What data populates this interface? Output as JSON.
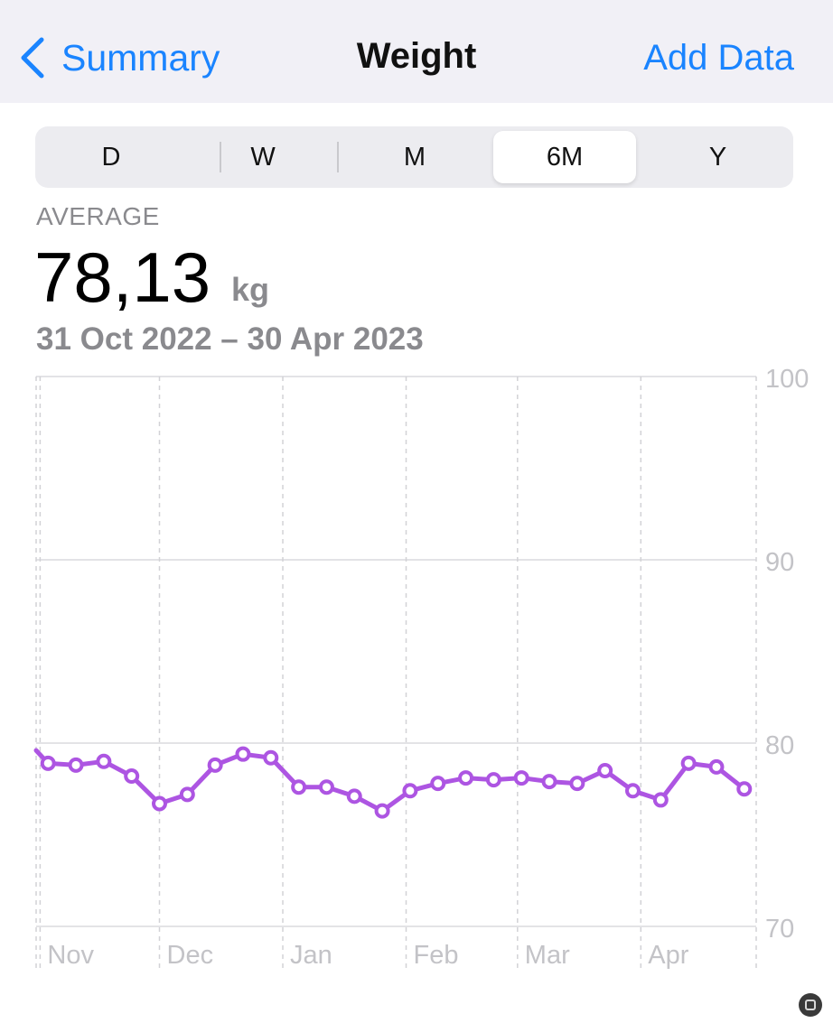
{
  "nav": {
    "back_label": "Summary",
    "title": "Weight",
    "action_label": "Add Data"
  },
  "segments": [
    "D",
    "W",
    "M",
    "6M",
    "Y"
  ],
  "selected_segment": "6M",
  "summary": {
    "label": "AVERAGE",
    "value": "78,13",
    "unit": "kg",
    "range": "31 Oct 2022 – 30 Apr 2023"
  },
  "colors": {
    "accent": "#1a84ff",
    "series": "#ad55e2"
  },
  "chart_data": {
    "type": "line",
    "y_ticks": [
      "100",
      "90",
      "80",
      "70"
    ],
    "x_labels": [
      "Nov",
      "Dec",
      "Jan",
      "Feb",
      "Mar",
      "Apr"
    ],
    "ylim": [
      70,
      100
    ],
    "xlim": [
      "2022-10-31",
      "2023-04-30"
    ],
    "series": [
      {
        "points": [
          [
            "2022-10-31",
            79.6
          ],
          [
            "2022-11-03",
            78.9
          ],
          [
            "2022-11-10",
            78.8
          ],
          [
            "2022-11-17",
            79.0
          ],
          [
            "2022-11-24",
            78.2
          ],
          [
            "2022-12-01",
            76.7
          ],
          [
            "2022-12-08",
            77.2
          ],
          [
            "2022-12-15",
            78.8
          ],
          [
            "2022-12-22",
            79.4
          ],
          [
            "2022-12-29",
            79.2
          ],
          [
            "2023-01-05",
            77.6
          ],
          [
            "2023-01-12",
            77.6
          ],
          [
            "2023-01-19",
            77.1
          ],
          [
            "2023-01-26",
            76.3
          ],
          [
            "2023-02-02",
            77.4
          ],
          [
            "2023-02-09",
            77.8
          ],
          [
            "2023-02-16",
            78.1
          ],
          [
            "2023-02-23",
            78.0
          ],
          [
            "2023-03-02",
            78.1
          ],
          [
            "2023-03-09",
            77.9
          ],
          [
            "2023-03-16",
            77.8
          ],
          [
            "2023-03-23",
            78.5
          ],
          [
            "2023-03-30",
            77.4
          ],
          [
            "2023-04-06",
            76.9
          ],
          [
            "2023-04-13",
            78.9
          ],
          [
            "2023-04-20",
            78.7
          ],
          [
            "2023-04-27",
            77.5
          ]
        ],
        "markers": "open-circle",
        "first_point_marker": false
      }
    ],
    "grid": true,
    "y_axis_position": "right"
  }
}
